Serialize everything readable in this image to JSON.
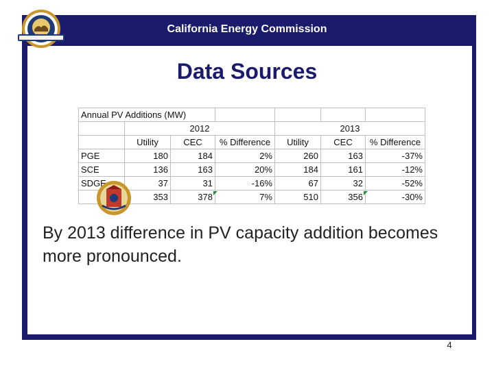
{
  "header": {
    "title": "California Energy Commission"
  },
  "slide": {
    "title": "Data Sources",
    "body": "By 2013 difference in PV capacity addition becomes more pronounced.",
    "page_number": "4"
  },
  "table": {
    "caption": "Annual PV Additions (MW)",
    "year_headers": [
      "2012",
      "2013"
    ],
    "col_headers": [
      "Utility",
      "CEC",
      "% Difference",
      "Utility",
      "CEC",
      "% Difference"
    ],
    "rows": [
      {
        "name": "PGE",
        "cells": [
          "180",
          "184",
          "2%",
          "260",
          "163",
          "-37%"
        ]
      },
      {
        "name": "SCE",
        "cells": [
          "136",
          "163",
          "20%",
          "184",
          "161",
          "-12%"
        ]
      },
      {
        "name": "SDGE",
        "cells": [
          "37",
          "31",
          "-16%",
          "67",
          "32",
          "-52%"
        ]
      },
      {
        "name": "",
        "cells": [
          "353",
          "378",
          "7%",
          "510",
          "356",
          "-30%"
        ]
      }
    ]
  },
  "colors": {
    "header_bg": "#1b1b6b",
    "title": "#1b1b6b",
    "seal_gold": "#c8962a",
    "seal_blue": "#1e3a78"
  },
  "icons": {
    "logo": "cec-seal-icon",
    "table_seal": "california-seal-icon"
  }
}
